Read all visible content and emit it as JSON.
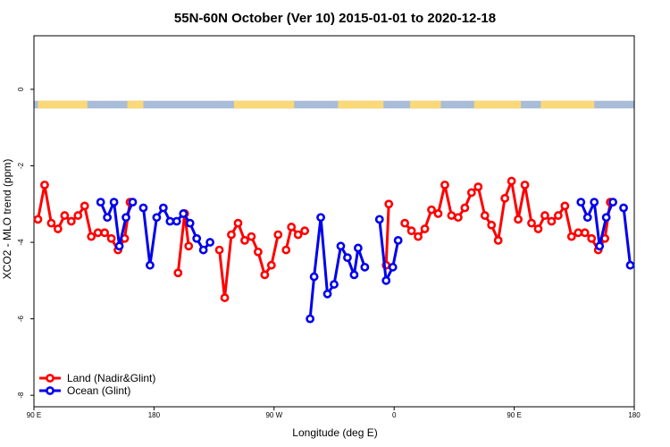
{
  "chart_data": {
    "type": "line",
    "title": "55N-60N October (Ver 10)   2015-01-01 to 2020-12-18",
    "xlabel": "Longitude (deg E)",
    "ylabel": "XCO2 - MLO trend (ppm)",
    "xlim": [
      90,
      540
    ],
    "ylim": [
      -8.3,
      1.4
    ],
    "x_ticks": [
      {
        "value": 90,
        "label": "90 E"
      },
      {
        "value": 180,
        "label": "180"
      },
      {
        "value": 270,
        "label": "90 W"
      },
      {
        "value": 360,
        "label": "0"
      },
      {
        "value": 450,
        "label": "90 E"
      },
      {
        "value": 540,
        "label": "180"
      }
    ],
    "y_ticks": [
      {
        "value": 0,
        "label": "0"
      },
      {
        "value": -2,
        "label": "-2"
      },
      {
        "value": -4,
        "label": "-4"
      },
      {
        "value": -6,
        "label": "-6"
      },
      {
        "value": -8,
        "label": "-8"
      }
    ],
    "land_strip": {
      "y_top": -0.3,
      "y_bottom": -0.5,
      "ocean_color": "#a9bcd8",
      "land_color": "#fbd977"
    },
    "legend_position": "bottom-left",
    "series": [
      {
        "name": "Land (Nadir&Glint)",
        "color": "#ff0000",
        "segments": [
          [
            [
              93,
              -3.4
            ],
            [
              98,
              -2.5
            ],
            [
              103,
              -3.5
            ],
            [
              108,
              -3.65
            ],
            [
              113,
              -3.3
            ],
            [
              118,
              -3.45
            ],
            [
              123,
              -3.3
            ],
            [
              128,
              -3.05
            ],
            [
              133,
              -3.85
            ],
            [
              138,
              -3.75
            ],
            [
              143,
              -3.75
            ],
            [
              148,
              -3.9
            ],
            [
              153,
              -4.2
            ],
            [
              158,
              -3.9
            ],
            [
              162,
              -2.95
            ]
          ],
          [
            [
              198,
              -4.8
            ],
            [
              203,
              -3.25
            ],
            [
              206,
              -4.1
            ]
          ],
          [
            [
              229,
              -4.2
            ],
            [
              233,
              -5.45
            ],
            [
              238,
              -3.8
            ],
            [
              243,
              -3.5
            ],
            [
              248,
              -3.95
            ],
            [
              253,
              -3.85
            ],
            [
              258,
              -4.25
            ],
            [
              263,
              -4.85
            ],
            [
              268,
              -4.6
            ],
            [
              273,
              -3.8
            ]
          ],
          [
            [
              279,
              -4.2
            ],
            [
              283,
              -3.6
            ],
            [
              288,
              -3.8
            ],
            [
              293,
              -3.7
            ]
          ],
          [
            [
              354,
              -4.6
            ],
            [
              356,
              -3.0
            ]
          ],
          [
            [
              368,
              -3.5
            ],
            [
              373,
              -3.7
            ],
            [
              378,
              -3.85
            ],
            [
              383,
              -3.65
            ],
            [
              388,
              -3.15
            ],
            [
              393,
              -3.25
            ],
            [
              398,
              -2.5
            ],
            [
              403,
              -3.3
            ],
            [
              408,
              -3.35
            ],
            [
              413,
              -3.1
            ],
            [
              418,
              -2.7
            ],
            [
              423,
              -2.55
            ],
            [
              428,
              -3.3
            ],
            [
              433,
              -3.55
            ],
            [
              438,
              -3.95
            ],
            [
              443,
              -2.85
            ],
            [
              448,
              -2.4
            ],
            [
              453,
              -3.4
            ],
            [
              458,
              -2.5
            ],
            [
              463,
              -3.5
            ],
            [
              468,
              -3.65
            ],
            [
              473,
              -3.3
            ],
            [
              478,
              -3.45
            ],
            [
              483,
              -3.3
            ],
            [
              488,
              -3.05
            ],
            [
              493,
              -3.85
            ],
            [
              498,
              -3.75
            ],
            [
              503,
              -3.75
            ],
            [
              508,
              -3.9
            ],
            [
              513,
              -4.2
            ],
            [
              518,
              -3.9
            ],
            [
              522,
              -2.95
            ]
          ]
        ]
      },
      {
        "name": "Ocean (Glint)",
        "color": "#0000ee",
        "segments": [
          [
            [
              140,
              -2.95
            ],
            [
              145,
              -3.35
            ],
            [
              150,
              -2.95
            ],
            [
              154,
              -4.1
            ],
            [
              159,
              -3.35
            ],
            [
              164,
              -2.95
            ]
          ],
          [
            [
              172,
              -3.1
            ],
            [
              177,
              -4.6
            ],
            [
              182,
              -3.35
            ],
            [
              187,
              -3.1
            ],
            [
              192,
              -3.45
            ],
            [
              197,
              -3.45
            ],
            [
              202,
              -3.25
            ],
            [
              207,
              -3.5
            ],
            [
              212,
              -3.9
            ],
            [
              217,
              -4.2
            ],
            [
              222,
              -4.0
            ]
          ],
          [
            [
              297,
              -6.0
            ],
            [
              300,
              -4.9
            ],
            [
              305,
              -3.35
            ],
            [
              310,
              -5.35
            ],
            [
              315,
              -5.1
            ],
            [
              320,
              -4.1
            ],
            [
              325,
              -4.4
            ],
            [
              330,
              -4.85
            ],
            [
              333,
              -4.15
            ],
            [
              338,
              -4.65
            ]
          ],
          [
            [
              349,
              -3.4
            ],
            [
              354,
              -5.0
            ],
            [
              359,
              -4.65
            ],
            [
              363,
              -3.95
            ]
          ],
          [
            [
              500,
              -2.95
            ],
            [
              505,
              -3.35
            ],
            [
              510,
              -2.95
            ],
            [
              514,
              -4.1
            ],
            [
              519,
              -3.35
            ],
            [
              524,
              -2.95
            ]
          ],
          [
            [
              532,
              -3.1
            ],
            [
              537,
              -4.6
            ]
          ]
        ]
      }
    ]
  }
}
